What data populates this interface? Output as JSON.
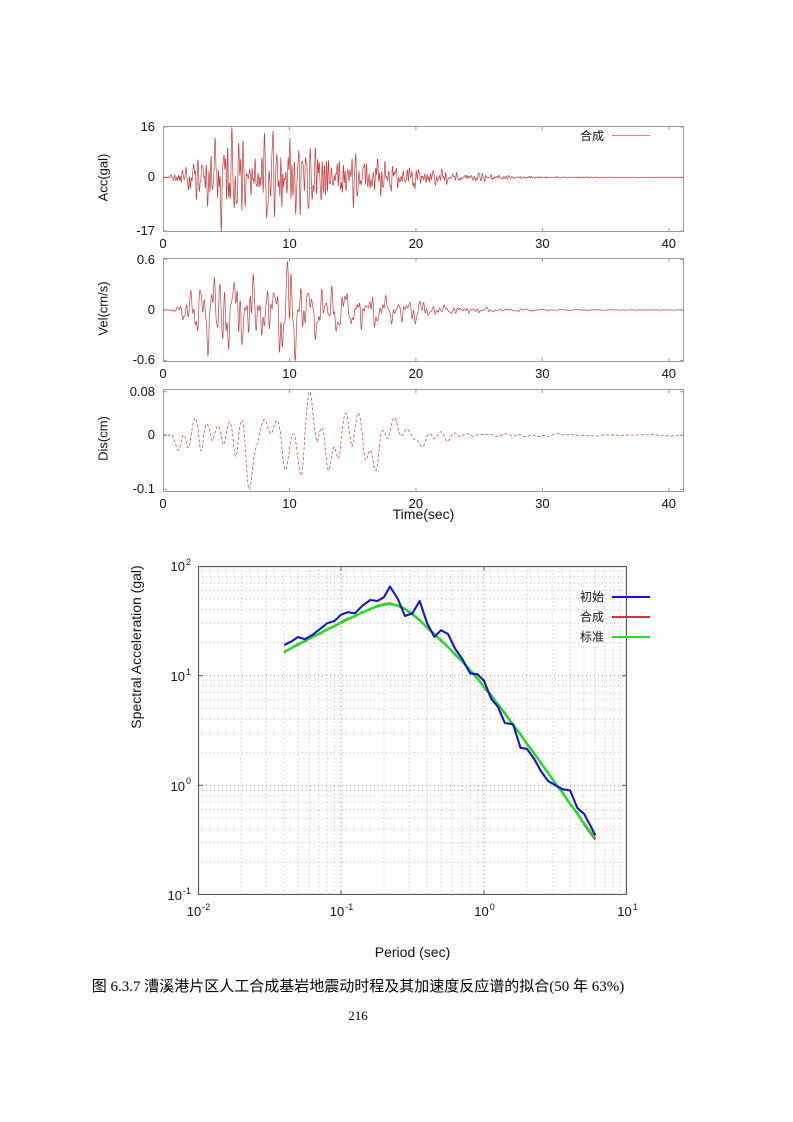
{
  "page": {
    "caption": "图 6.3.7 漕溪港片区人工合成基岩地震动时程及其加速度反应谱的拟合(50 年 63%)",
    "page_number": "216"
  },
  "colors": {
    "waveform": "#c23030",
    "time_frame": "#9a9a9a",
    "spec_frame": "#555555",
    "grid_minor": "#bdbdbd",
    "grid_major": "#8f8f8f",
    "legend_line_light_red": "#f08080",
    "text": "#111111"
  },
  "chart_data": [
    {
      "id": "acc",
      "type": "line",
      "ylabel": "Acc(gal)",
      "xlabel": "",
      "legend": [
        {
          "label": "合成",
          "color": "#f08080"
        }
      ],
      "x_ticks": [
        0,
        10,
        20,
        30,
        40
      ],
      "y_ticks": [
        16,
        0,
        -17
      ],
      "xlim": [
        0,
        41.2
      ],
      "ylim": [
        -17,
        16
      ],
      "signal": {
        "kind": "synthetic-seismic-acceleration",
        "seed": 7,
        "duration": 41.2,
        "dt": 0.02,
        "freq_range": [
          0.8,
          9
        ],
        "components": 60,
        "peak_pos": 15.6,
        "peak_neg": -17,
        "envelope": [
          [
            0,
            0
          ],
          [
            0.5,
            0.03
          ],
          [
            1.5,
            0.18
          ],
          [
            2.5,
            0.45
          ],
          [
            3.5,
            0.75
          ],
          [
            5,
            1
          ],
          [
            7,
            0.85
          ],
          [
            9,
            0.92
          ],
          [
            11,
            0.8
          ],
          [
            13,
            0.72
          ],
          [
            15,
            0.55
          ],
          [
            17,
            0.42
          ],
          [
            19,
            0.3
          ],
          [
            21,
            0.22
          ],
          [
            23,
            0.14
          ],
          [
            25,
            0.09
          ],
          [
            27,
            0.05
          ],
          [
            30,
            0.02
          ],
          [
            34,
            0.01
          ],
          [
            41.2,
            0.006
          ]
        ]
      }
    },
    {
      "id": "vel",
      "type": "line",
      "ylabel": "Vel(cm/s)",
      "xlabel": "",
      "legend": [],
      "x_ticks": [
        0,
        10,
        20,
        30,
        40
      ],
      "y_ticks": [
        0.6,
        0,
        -0.6
      ],
      "xlim": [
        0,
        41.2
      ],
      "ylim": [
        -0.62,
        0.62
      ],
      "signal": {
        "kind": "synthetic-seismic-velocity",
        "seed": 13,
        "duration": 41.2,
        "dt": 0.02,
        "freq_range": [
          0.5,
          5
        ],
        "components": 40,
        "peak_pos": 0.58,
        "peak_neg": -0.6,
        "envelope": [
          [
            0,
            0
          ],
          [
            0.8,
            0.04
          ],
          [
            1.5,
            0.15
          ],
          [
            2.5,
            0.5
          ],
          [
            3.5,
            0.85
          ],
          [
            4.5,
            1
          ],
          [
            6,
            0.8
          ],
          [
            8,
            0.85
          ],
          [
            10,
            0.9
          ],
          [
            11,
            0.75
          ],
          [
            13,
            0.6
          ],
          [
            15,
            0.5
          ],
          [
            17,
            0.35
          ],
          [
            19,
            0.22
          ],
          [
            21,
            0.14
          ],
          [
            23,
            0.09
          ],
          [
            26,
            0.05
          ],
          [
            29,
            0.025
          ],
          [
            33,
            0.012
          ],
          [
            41.2,
            0.008
          ]
        ]
      }
    },
    {
      "id": "dis",
      "type": "line",
      "ylabel": "Dis(cm)",
      "xlabel": "Time(sec)",
      "legend": [],
      "x_ticks": [
        0,
        10,
        20,
        30,
        40
      ],
      "y_ticks": [
        0.08,
        0,
        -0.1
      ],
      "xlim": [
        0,
        41.2
      ],
      "ylim": [
        -0.105,
        0.085
      ],
      "dashed": true,
      "signal": {
        "kind": "synthetic-seismic-displacement",
        "seed": 21,
        "duration": 41.2,
        "dt": 0.04,
        "freq_range": [
          0.12,
          1.3
        ],
        "components": 18,
        "peak_pos": 0.08,
        "peak_neg": -0.1,
        "envelope": [
          [
            0,
            0
          ],
          [
            1,
            0.15
          ],
          [
            2,
            0.5
          ],
          [
            3,
            0.85
          ],
          [
            4,
            0.7
          ],
          [
            5,
            0.8
          ],
          [
            6,
            0.95
          ],
          [
            7,
            1
          ],
          [
            8,
            0.7
          ],
          [
            9,
            0.6
          ],
          [
            10,
            0.8
          ],
          [
            11.5,
            0.95
          ],
          [
            13,
            0.75
          ],
          [
            15,
            0.55
          ],
          [
            17,
            0.5
          ],
          [
            19,
            0.35
          ],
          [
            21,
            0.25
          ],
          [
            23,
            0.15
          ],
          [
            26,
            0.08
          ],
          [
            29,
            0.04
          ],
          [
            33,
            0.015
          ],
          [
            41.2,
            0.008
          ]
        ]
      }
    },
    {
      "id": "spectra",
      "type": "line-loglog",
      "ylabel": "Spectral Acceleration (gal)",
      "xlabel": "Period (sec)",
      "tick_base": "10",
      "x_tick_exps": [
        "-2",
        "-1",
        "0",
        "1"
      ],
      "y_tick_exps": [
        "2",
        "1",
        "0",
        "-1"
      ],
      "xlim_exp": [
        -2,
        1
      ],
      "ylim_exp": [
        -1,
        2
      ],
      "grid": "log-minor-dotted",
      "legend": [
        {
          "label": "初始",
          "color": "#1414cc"
        },
        {
          "label": "合成",
          "color": "#e03030"
        },
        {
          "label": "标准",
          "color": "#22dd22"
        }
      ],
      "x": [
        0.04,
        0.045,
        0.05,
        0.056,
        0.063,
        0.071,
        0.08,
        0.09,
        0.1,
        0.112,
        0.125,
        0.14,
        0.16,
        0.18,
        0.2,
        0.22,
        0.25,
        0.28,
        0.315,
        0.355,
        0.4,
        0.45,
        0.5,
        0.56,
        0.63,
        0.71,
        0.8,
        0.9,
        1.0,
        1.12,
        1.25,
        1.4,
        1.6,
        1.8,
        2.0,
        2.24,
        2.5,
        2.8,
        3.15,
        3.55,
        4.0,
        4.5,
        5.0,
        5.6,
        6.0
      ],
      "series": [
        {
          "name": "初始",
          "color": "#1414cc",
          "width": 2.1,
          "values": [
            19.0,
            20.5,
            22.5,
            21.5,
            23.5,
            26.5,
            30.0,
            31.5,
            36.0,
            38.0,
            37.0,
            43.0,
            49.0,
            48.0,
            52.0,
            65.0,
            50.0,
            35.0,
            37.0,
            48.0,
            30.0,
            22.5,
            26.0,
            24.0,
            17.5,
            14.0,
            10.5,
            10.3,
            9.0,
            6.2,
            5.2,
            3.7,
            3.6,
            2.2,
            2.15,
            1.75,
            1.35,
            1.1,
            1.0,
            0.92,
            0.9,
            0.62,
            0.55,
            0.42,
            0.35
          ]
        },
        {
          "name": "合成",
          "color": "#e03030",
          "width": 2.0,
          "values": [
            16.2,
            17.9,
            19.5,
            20.5,
            22.8,
            24.0,
            26.6,
            28.1,
            30.9,
            33.2,
            34.6,
            37.9,
            40.1,
            43.4,
            44.9,
            45.8,
            43.0,
            40.9,
            36.0,
            32.4,
            27.2,
            24.1,
            20.7,
            18.4,
            15.4,
            13.5,
            11.0,
            9.5,
            7.8,
            6.7,
            5.4,
            4.6,
            3.5,
            2.95,
            2.35,
            1.98,
            1.58,
            1.32,
            1.03,
            0.86,
            0.67,
            0.56,
            0.44,
            0.36,
            0.32
          ]
        },
        {
          "name": "标准",
          "color": "#22dd22",
          "width": 2.5,
          "values": [
            16.5,
            17.8,
            19.2,
            20.8,
            22.5,
            24.3,
            26.3,
            28.4,
            30.5,
            32.8,
            35.0,
            37.5,
            40.5,
            43.0,
            44.5,
            45.0,
            43.5,
            40.5,
            36.5,
            32.0,
            27.5,
            23.8,
            21.0,
            18.2,
            15.6,
            13.3,
            11.2,
            9.4,
            7.9,
            6.6,
            5.5,
            4.5,
            3.55,
            2.9,
            2.4,
            1.95,
            1.6,
            1.3,
            1.05,
            0.85,
            0.68,
            0.55,
            0.45,
            0.37,
            0.33
          ]
        }
      ],
      "draw_order": [
        1,
        2,
        0
      ]
    }
  ]
}
